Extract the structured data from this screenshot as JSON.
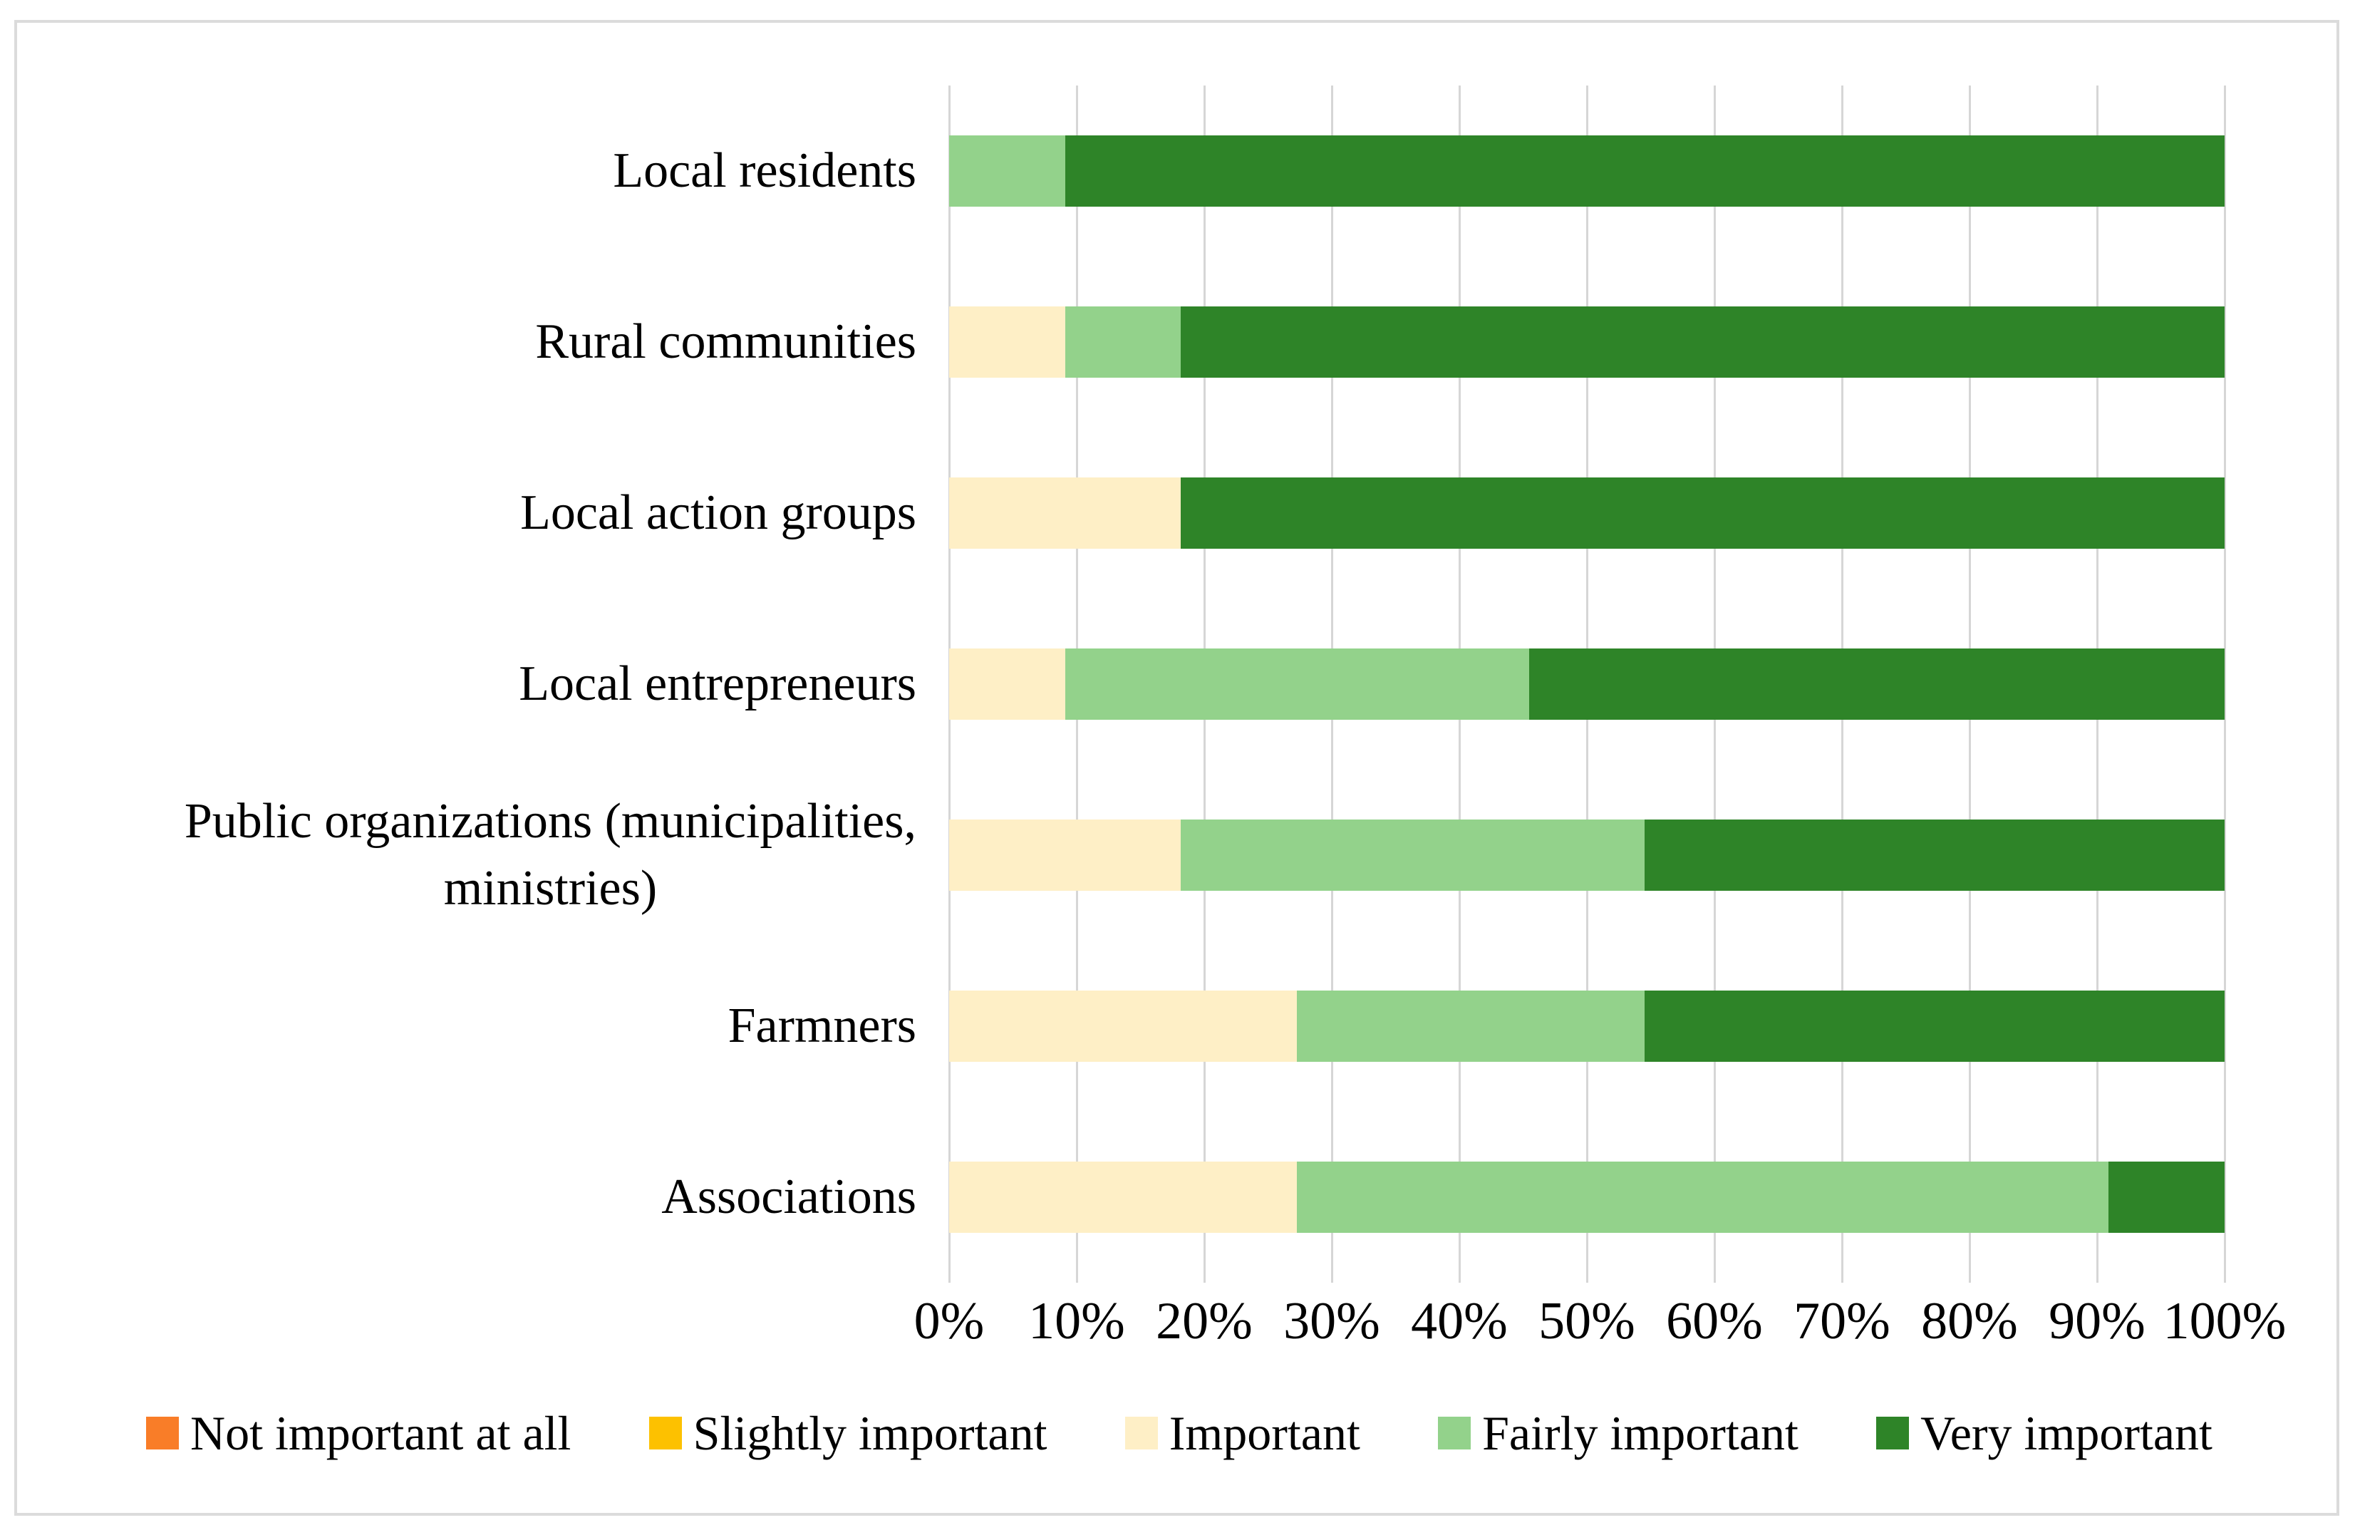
{
  "figure": {
    "background": "#FFFFFF",
    "border_color": "#DBDBDB",
    "gridline_color": "#D6D6D6"
  },
  "chart_data": {
    "type": "bar",
    "subtype": "horizontal-100pct-stacked",
    "title": "",
    "xlabel": "",
    "ylabel": "",
    "xlim": [
      0,
      100
    ],
    "grid": "vertical",
    "legend_position": "bottom",
    "categories": [
      "Local residents",
      "Rural communities",
      "Local action groups",
      "Local entrepreneurs",
      "Public organizations (municipalities,\nministries)",
      "Farmners",
      "Associations"
    ],
    "series": [
      {
        "name": "Not important at all",
        "color": "#F97D28",
        "values": [
          0,
          0,
          0,
          0,
          0,
          0,
          0
        ]
      },
      {
        "name": "Slightly important",
        "color": "#FDC100",
        "values": [
          0,
          0,
          0,
          0,
          0,
          0,
          0
        ]
      },
      {
        "name": "Important",
        "color": "#FEEFC6",
        "values": [
          0,
          9.09,
          18.18,
          9.09,
          18.18,
          27.27,
          27.27
        ]
      },
      {
        "name": "Fairly important",
        "color": "#93D28B",
        "values": [
          9.09,
          9.09,
          0,
          36.36,
          36.36,
          27.27,
          63.64
        ]
      },
      {
        "name": "Very important",
        "color": "#2E8428",
        "values": [
          90.91,
          81.82,
          81.82,
          54.55,
          45.45,
          45.45,
          9.09
        ]
      }
    ],
    "x_ticks": [
      "0%",
      "10%",
      "20%",
      "30%",
      "40%",
      "50%",
      "60%",
      "70%",
      "80%",
      "90%",
      "100%"
    ]
  }
}
